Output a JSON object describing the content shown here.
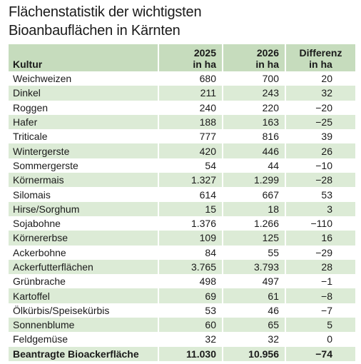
{
  "title": [
    "Flächenstatistik der wichtigsten",
    "Bioanbauflächen in Kärnten"
  ],
  "table": {
    "header": [
      [
        "Kultur"
      ],
      [
        "2025",
        "in ha"
      ],
      [
        "2026",
        "in ha"
      ],
      [
        "Differenz",
        "in ha"
      ]
    ],
    "rows": [
      [
        "Weichweizen",
        "680",
        "700",
        "20"
      ],
      [
        "Dinkel",
        "211",
        "243",
        "32"
      ],
      [
        "Roggen",
        "240",
        "220",
        "−20"
      ],
      [
        "Hafer",
        "188",
        "163",
        "−25"
      ],
      [
        "Triticale",
        "777",
        "816",
        "39"
      ],
      [
        "Wintergerste",
        "420",
        "446",
        "26"
      ],
      [
        "Sommergerste",
        "54",
        "44",
        "−10"
      ],
      [
        "Körnermais",
        "1.327",
        "1.299",
        "−28"
      ],
      [
        "Silomais",
        "614",
        "667",
        "53"
      ],
      [
        "Hirse/Sorghum",
        "15",
        "18",
        "3"
      ],
      [
        "Sojabohne",
        "1.376",
        "1.266",
        "−110"
      ],
      [
        "Körnererbse",
        "109",
        "125",
        "16"
      ],
      [
        "Ackerbohne",
        "84",
        "55",
        "−29"
      ],
      [
        "Ackerfutterflächen",
        "3.765",
        "3.793",
        "28"
      ],
      [
        "Grünbrache",
        "498",
        "497",
        "−1"
      ],
      [
        "Kartoffel",
        "69",
        "61",
        "−8"
      ],
      [
        "Ölkürbis/Speisekürbis",
        "53",
        "46",
        "−7"
      ],
      [
        "Sonnenblume",
        "60",
        "65",
        "5"
      ],
      [
        "Feldgemüse",
        "32",
        "32",
        "0"
      ]
    ],
    "total": [
      "Beantragte Bioackerfläche",
      "11.030",
      "10.956",
      "−74"
    ]
  }
}
